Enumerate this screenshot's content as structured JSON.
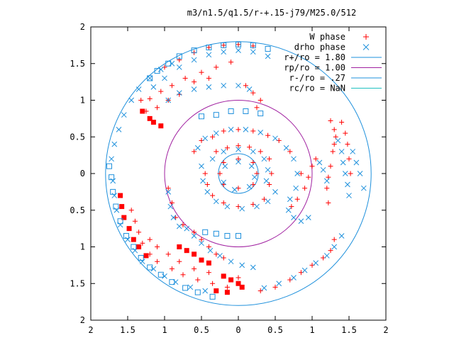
{
  "chart_data": {
    "type": "scatter",
    "title": "m3/n1.5/q1.5/r-+.15-j79/M25.0/512",
    "xlim": [
      -2,
      2
    ],
    "ylim": [
      -2,
      2
    ],
    "x_tick_values": [
      -2,
      -1.5,
      -1,
      -0.5,
      0,
      0.5,
      1,
      1.5,
      2
    ],
    "x_tick_labels": [
      "2",
      "1.5",
      "1",
      "0.5",
      "0",
      "0.5",
      "1",
      "1.5",
      "2"
    ],
    "y_tick_values": [
      2,
      1.5,
      1,
      0.5,
      0,
      -0.5,
      -1,
      -1.5,
      -2
    ],
    "y_tick_labels": [
      "2",
      "1.5",
      "1",
      "0.5",
      "0",
      "0.5",
      "1",
      "1.5",
      "2"
    ],
    "grid": false,
    "legend_position": "top-right",
    "legend": [
      {
        "label": "W phase",
        "marker": "plus",
        "color": "#ff0000"
      },
      {
        "label": "drho phase",
        "marker": "cross",
        "color": "#1e90dc"
      },
      {
        "label": "r+/ro = 1.80",
        "marker": "line",
        "color": "#1e90dc"
      },
      {
        "label": "rp/ro = 1.00",
        "marker": "line",
        "color": "#a020a0"
      },
      {
        "label": "r-/ro = .27",
        "marker": "line",
        "color": "#1e90dc"
      },
      {
        "label": "rc/ro = NaN",
        "marker": "line",
        "color": "#20c0c0"
      }
    ],
    "circles": [
      {
        "name": "r+/ro",
        "r": 1.8,
        "color": "#1e90dc"
      },
      {
        "name": "rp/ro",
        "r": 1.0,
        "color": "#a020a0"
      },
      {
        "name": "r-/ro",
        "r": 0.27,
        "color": "#1e90dc"
      }
    ],
    "series": [
      {
        "name": "W phase",
        "color": "#ff0000",
        "marker": "plus",
        "points": [
          [
            -1.32,
            1.0
          ],
          [
            -1.2,
            1.02
          ],
          [
            -1.05,
            1.12
          ],
          [
            -0.9,
            1.2
          ],
          [
            -0.72,
            1.3
          ],
          [
            -0.5,
            1.38
          ],
          [
            -0.3,
            1.45
          ],
          [
            -0.1,
            1.52
          ],
          [
            -1.25,
            0.85
          ],
          [
            -1.1,
            0.9
          ],
          [
            -0.95,
            1.0
          ],
          [
            -0.8,
            1.08
          ],
          [
            -0.6,
            1.25
          ],
          [
            -0.4,
            1.3
          ],
          [
            -0.4,
            1.72
          ],
          [
            -0.2,
            1.75
          ],
          [
            0.0,
            1.76
          ],
          [
            0.2,
            1.74
          ],
          [
            -0.6,
            1.65
          ],
          [
            -0.8,
            1.55
          ],
          [
            -1.0,
            1.45
          ],
          [
            0.1,
            1.2
          ],
          [
            0.2,
            1.1
          ],
          [
            0.3,
            1.0
          ],
          [
            0.25,
            0.9
          ],
          [
            1.25,
            0.72
          ],
          [
            1.3,
            0.6
          ],
          [
            1.32,
            0.5
          ],
          [
            1.3,
            0.4
          ],
          [
            1.28,
            0.3
          ],
          [
            1.25,
            0.1
          ],
          [
            1.22,
            -0.05
          ],
          [
            1.2,
            -0.2
          ],
          [
            1.22,
            -0.4
          ],
          [
            1.4,
            0.7
          ],
          [
            1.45,
            0.55
          ],
          [
            1.48,
            0.4
          ],
          [
            1.5,
            0.2
          ],
          [
            1.52,
            0.0
          ],
          [
            1.3,
            -0.9
          ],
          [
            1.25,
            -1.05
          ],
          [
            1.15,
            -1.15
          ],
          [
            1.0,
            -1.25
          ],
          [
            0.85,
            -1.35
          ],
          [
            0.7,
            -1.45
          ],
          [
            0.5,
            -1.55
          ],
          [
            0.3,
            -1.6
          ],
          [
            -1.45,
            -0.5
          ],
          [
            -1.4,
            -0.65
          ],
          [
            -1.35,
            -0.8
          ],
          [
            -1.3,
            -0.95
          ],
          [
            -1.2,
            -1.1
          ],
          [
            -1.1,
            -1.2
          ],
          [
            -0.9,
            -1.3
          ],
          [
            -0.75,
            -1.38
          ],
          [
            -0.55,
            -1.45
          ],
          [
            -0.35,
            -1.5
          ],
          [
            -0.15,
            -1.55
          ],
          [
            -1.2,
            -0.9
          ],
          [
            -1.1,
            -1.0
          ],
          [
            -0.95,
            -1.1
          ],
          [
            -0.8,
            -1.2
          ],
          [
            -0.6,
            -1.3
          ],
          [
            -0.4,
            -1.35
          ],
          [
            -0.2,
            -1.4
          ],
          [
            0.0,
            -1.42
          ],
          [
            -0.95,
            -0.2
          ],
          [
            -0.9,
            -0.4
          ],
          [
            -0.85,
            -0.6
          ],
          [
            -0.75,
            -0.7
          ],
          [
            -0.6,
            -0.8
          ],
          [
            -0.5,
            -0.9
          ],
          [
            -0.4,
            -1.0
          ],
          [
            -0.3,
            -1.1
          ],
          [
            -0.2,
            -1.15
          ],
          [
            -0.6,
            0.3
          ],
          [
            -0.5,
            0.45
          ],
          [
            -0.35,
            0.5
          ],
          [
            -0.2,
            0.58
          ],
          [
            0.0,
            0.6
          ],
          [
            0.2,
            0.58
          ],
          [
            0.4,
            0.52
          ],
          [
            0.55,
            0.45
          ],
          [
            0.7,
            0.3
          ],
          [
            0.85,
            0.0
          ],
          [
            -0.45,
            0.0
          ],
          [
            -0.42,
            -0.15
          ],
          [
            -0.35,
            -0.3
          ],
          [
            -0.2,
            -0.4
          ],
          [
            0.0,
            -0.45
          ],
          [
            0.2,
            -0.42
          ],
          [
            0.35,
            -0.35
          ],
          [
            -0.3,
            0.3
          ],
          [
            -0.15,
            0.35
          ],
          [
            0.0,
            0.38
          ],
          [
            0.15,
            0.36
          ],
          [
            0.3,
            0.3
          ],
          [
            0.42,
            0.2
          ],
          [
            0.45,
            0.0
          ],
          [
            0.42,
            -0.15
          ],
          [
            -0.2,
            0.15
          ],
          [
            0.0,
            0.2
          ],
          [
            0.2,
            0.15
          ],
          [
            0.25,
            0.0
          ],
          [
            0.2,
            -0.15
          ],
          [
            0.0,
            -0.2
          ],
          [
            -0.2,
            -0.15
          ],
          [
            -0.25,
            0.0
          ],
          [
            0.72,
            -0.45
          ],
          [
            0.8,
            -0.35
          ],
          [
            0.9,
            -0.2
          ],
          [
            0.95,
            -0.05
          ],
          [
            1.0,
            0.1
          ],
          [
            1.05,
            0.2
          ]
        ]
      },
      {
        "name": "drho phase",
        "color": "#1e90dc",
        "marker": "cross",
        "points": [
          [
            -0.6,
            1.55
          ],
          [
            -0.4,
            1.62
          ],
          [
            -0.2,
            1.66
          ],
          [
            0.0,
            1.68
          ],
          [
            0.2,
            1.66
          ],
          [
            0.4,
            1.6
          ],
          [
            -0.8,
            1.45
          ],
          [
            -1.0,
            1.3
          ],
          [
            -1.15,
            1.18
          ],
          [
            -0.95,
            1.0
          ],
          [
            -0.8,
            1.1
          ],
          [
            -0.6,
            1.15
          ],
          [
            -0.4,
            1.18
          ],
          [
            -0.2,
            1.2
          ],
          [
            0.0,
            1.2
          ],
          [
            0.15,
            1.15
          ],
          [
            1.35,
            0.45
          ],
          [
            1.4,
            0.3
          ],
          [
            1.42,
            0.15
          ],
          [
            1.45,
            0.0
          ],
          [
            1.48,
            -0.15
          ],
          [
            1.5,
            -0.3
          ],
          [
            1.55,
            0.3
          ],
          [
            1.6,
            0.15
          ],
          [
            1.65,
            0.0
          ],
          [
            1.7,
            -0.2
          ],
          [
            1.1,
            0.15
          ],
          [
            1.15,
            0.05
          ],
          [
            1.2,
            -0.1
          ],
          [
            0.95,
            -0.6
          ],
          [
            0.85,
            -0.65
          ],
          [
            0.75,
            -0.6
          ],
          [
            0.68,
            -0.5
          ],
          [
            1.4,
            -0.85
          ],
          [
            1.3,
            -1.0
          ],
          [
            1.2,
            -1.12
          ],
          [
            1.05,
            -1.22
          ],
          [
            0.9,
            -1.32
          ],
          [
            0.75,
            -1.42
          ],
          [
            0.55,
            -1.5
          ],
          [
            0.35,
            -1.56
          ],
          [
            -1.7,
            -0.1
          ],
          [
            -1.68,
            -0.3
          ],
          [
            -1.65,
            -0.5
          ],
          [
            -1.6,
            -0.7
          ],
          [
            -1.5,
            -0.9
          ],
          [
            -1.4,
            -1.05
          ],
          [
            -1.3,
            -1.2
          ],
          [
            -1.15,
            -1.3
          ],
          [
            -1.0,
            -1.4
          ],
          [
            -0.85,
            -1.48
          ],
          [
            -0.65,
            -1.55
          ],
          [
            -0.45,
            -1.6
          ],
          [
            -1.72,
            0.2
          ],
          [
            -1.68,
            0.4
          ],
          [
            -1.62,
            0.6
          ],
          [
            -1.55,
            0.8
          ],
          [
            -1.45,
            1.0
          ],
          [
            -1.35,
            1.15
          ],
          [
            -1.2,
            1.3
          ],
          [
            -1.05,
            1.42
          ],
          [
            -0.9,
            1.5
          ],
          [
            -0.7,
            -0.75
          ],
          [
            -0.6,
            -0.85
          ],
          [
            -0.5,
            -0.95
          ],
          [
            -0.38,
            -1.05
          ],
          [
            -0.25,
            -1.12
          ],
          [
            -0.1,
            -1.2
          ],
          [
            0.05,
            -1.25
          ],
          [
            0.2,
            -1.28
          ],
          [
            -0.95,
            -0.25
          ],
          [
            -0.92,
            -0.45
          ],
          [
            -0.88,
            -0.6
          ],
          [
            -0.8,
            -0.72
          ],
          [
            -0.55,
            0.35
          ],
          [
            -0.45,
            0.48
          ],
          [
            -0.3,
            0.55
          ],
          [
            -0.1,
            0.6
          ],
          [
            0.1,
            0.6
          ],
          [
            0.3,
            0.56
          ],
          [
            0.5,
            0.48
          ],
          [
            0.65,
            0.35
          ],
          [
            0.75,
            0.2
          ],
          [
            0.8,
            0.0
          ],
          [
            0.78,
            -0.2
          ],
          [
            0.7,
            -0.35
          ],
          [
            -0.5,
            0.1
          ],
          [
            -0.48,
            -0.1
          ],
          [
            -0.42,
            -0.25
          ],
          [
            -0.3,
            -0.38
          ],
          [
            -0.15,
            -0.45
          ],
          [
            0.05,
            -0.48
          ],
          [
            0.25,
            -0.45
          ],
          [
            0.4,
            -0.38
          ],
          [
            0.5,
            -0.25
          ],
          [
            -0.35,
            0.2
          ],
          [
            -0.2,
            0.3
          ],
          [
            0.0,
            0.33
          ],
          [
            0.2,
            0.3
          ],
          [
            0.35,
            0.2
          ],
          [
            0.4,
            0.05
          ],
          [
            0.38,
            -0.1
          ],
          [
            -0.18,
            0.1
          ],
          [
            0.0,
            0.16
          ],
          [
            0.18,
            0.1
          ],
          [
            0.22,
            -0.05
          ],
          [
            0.15,
            -0.18
          ],
          [
            -0.05,
            -0.22
          ],
          [
            -0.2,
            -0.12
          ]
        ]
      },
      {
        "name": "W phase (filled)",
        "color": "#ff0000",
        "marker": "square-filled",
        "points": [
          [
            -1.3,
            0.85
          ],
          [
            -1.2,
            0.75
          ],
          [
            -1.15,
            0.7
          ],
          [
            -1.05,
            0.65
          ],
          [
            -0.2,
            -1.4
          ],
          [
            -0.1,
            -1.45
          ],
          [
            0.0,
            -1.5
          ],
          [
            0.05,
            -1.55
          ],
          [
            -0.3,
            -1.6
          ],
          [
            -0.15,
            -1.62
          ],
          [
            -1.6,
            -0.3
          ],
          [
            -1.58,
            -0.45
          ],
          [
            -1.55,
            -0.6
          ],
          [
            -1.48,
            -0.75
          ],
          [
            -1.42,
            -0.9
          ],
          [
            -1.35,
            -1.0
          ],
          [
            -1.25,
            -1.12
          ],
          [
            -0.8,
            -1.0
          ],
          [
            -0.7,
            -1.05
          ],
          [
            -0.6,
            -1.1
          ],
          [
            -0.5,
            -1.18
          ],
          [
            -0.4,
            -1.22
          ]
        ]
      },
      {
        "name": "drho phase (open)",
        "color": "#1e90dc",
        "marker": "square-open",
        "points": [
          [
            -1.2,
            1.3
          ],
          [
            -1.1,
            1.4
          ],
          [
            -0.95,
            1.5
          ],
          [
            -0.8,
            1.6
          ],
          [
            -0.6,
            1.68
          ],
          [
            -0.4,
            1.72
          ],
          [
            -0.2,
            1.75
          ],
          [
            0.0,
            1.76
          ],
          [
            0.2,
            1.75
          ],
          [
            0.4,
            1.7
          ],
          [
            -0.1,
            0.85
          ],
          [
            0.1,
            0.85
          ],
          [
            0.3,
            0.82
          ],
          [
            -0.3,
            0.8
          ],
          [
            -0.5,
            0.78
          ],
          [
            -1.75,
            0.1
          ],
          [
            -1.72,
            -0.05
          ],
          [
            -1.7,
            -0.25
          ],
          [
            -1.66,
            -0.45
          ],
          [
            -1.6,
            -0.65
          ],
          [
            -1.52,
            -0.85
          ],
          [
            -1.42,
            -1.0
          ],
          [
            -1.32,
            -1.15
          ],
          [
            -1.2,
            -1.28
          ],
          [
            -1.05,
            -1.38
          ],
          [
            -0.9,
            -1.48
          ],
          [
            -0.72,
            -1.56
          ],
          [
            -0.55,
            -1.62
          ],
          [
            -0.35,
            -1.68
          ],
          [
            -0.45,
            -0.8
          ],
          [
            -0.3,
            -0.82
          ],
          [
            -0.15,
            -0.85
          ],
          [
            0.0,
            -0.85
          ]
        ]
      }
    ]
  }
}
